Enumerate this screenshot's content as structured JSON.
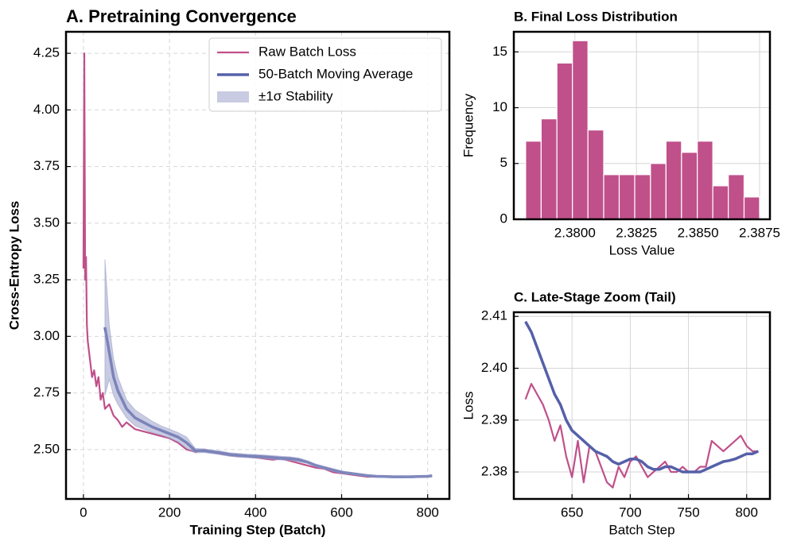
{
  "chart_data": [
    {
      "type": "line",
      "title": "A. Pretraining Convergence",
      "xlabel": "Training Step (Batch)",
      "ylabel": "Cross-Entropy Loss",
      "x": [
        0,
        2,
        4,
        6,
        8,
        10,
        15,
        20,
        25,
        30,
        35,
        40,
        45,
        50,
        60,
        70,
        80,
        90,
        100,
        120,
        140,
        160,
        180,
        200,
        220,
        240,
        260,
        280,
        300,
        320,
        340,
        360,
        380,
        400,
        420,
        440,
        460,
        480,
        500,
        520,
        540,
        560,
        580,
        600,
        620,
        640,
        660,
        680,
        700,
        720,
        740,
        760,
        780,
        800,
        810
      ],
      "series": [
        {
          "name": "Raw Batch Loss",
          "color": "#c0508a",
          "values": [
            3.3,
            4.25,
            3.25,
            3.35,
            3.05,
            2.98,
            2.9,
            2.82,
            2.85,
            2.78,
            2.82,
            2.72,
            2.75,
            2.68,
            2.7,
            2.65,
            2.63,
            2.6,
            2.62,
            2.59,
            2.58,
            2.57,
            2.56,
            2.55,
            2.53,
            2.5,
            2.49,
            2.5,
            2.49,
            2.48,
            2.475,
            2.47,
            2.47,
            2.465,
            2.46,
            2.455,
            2.46,
            2.45,
            2.44,
            2.43,
            2.42,
            2.415,
            2.4,
            2.395,
            2.39,
            2.385,
            2.38,
            2.38,
            2.382,
            2.38,
            2.378,
            2.38,
            2.382,
            2.383,
            2.384
          ]
        },
        {
          "name": "50-Batch Moving Average",
          "color": "#5560a8",
          "values": [
            null,
            null,
            null,
            null,
            null,
            null,
            null,
            null,
            null,
            null,
            null,
            null,
            null,
            3.04,
            2.93,
            2.82,
            2.76,
            2.72,
            2.68,
            2.64,
            2.62,
            2.6,
            2.585,
            2.57,
            2.555,
            2.53,
            2.495,
            2.495,
            2.49,
            2.485,
            2.478,
            2.475,
            2.472,
            2.47,
            2.468,
            2.465,
            2.462,
            2.46,
            2.455,
            2.445,
            2.43,
            2.42,
            2.41,
            2.4,
            2.395,
            2.39,
            2.385,
            2.382,
            2.381,
            2.38,
            2.38,
            2.38,
            2.381,
            2.382,
            2.384
          ]
        },
        {
          "name": "±1σ Stability",
          "color": "#9aa0c8",
          "upper": [
            null,
            null,
            null,
            null,
            null,
            null,
            null,
            null,
            null,
            null,
            null,
            null,
            null,
            3.34,
            3.05,
            2.9,
            2.82,
            2.77,
            2.72,
            2.675,
            2.65,
            2.625,
            2.605,
            2.59,
            2.575,
            2.555,
            2.505,
            2.503,
            2.498,
            2.493,
            2.486,
            2.483,
            2.48,
            2.478,
            2.476,
            2.473,
            2.47,
            2.468,
            2.463,
            2.451,
            2.436,
            2.426,
            2.416,
            2.406,
            2.399,
            2.394,
            2.389,
            2.386,
            2.385,
            2.384,
            2.384,
            2.384,
            2.385,
            2.386,
            2.388
          ],
          "lower": [
            null,
            null,
            null,
            null,
            null,
            null,
            null,
            null,
            null,
            null,
            null,
            null,
            null,
            2.74,
            2.81,
            2.74,
            2.7,
            2.67,
            2.64,
            2.605,
            2.59,
            2.575,
            2.565,
            2.55,
            2.535,
            2.505,
            2.485,
            2.487,
            2.482,
            2.477,
            2.47,
            2.467,
            2.464,
            2.462,
            2.46,
            2.457,
            2.454,
            2.452,
            2.447,
            2.439,
            2.424,
            2.414,
            2.404,
            2.394,
            2.391,
            2.386,
            2.381,
            2.378,
            2.377,
            2.376,
            2.376,
            2.376,
            2.377,
            2.378,
            2.38
          ]
        }
      ],
      "xlim": [
        -40.5,
        850.5
      ],
      "xticks": [
        0,
        200,
        400,
        600,
        800
      ],
      "ylim": [
        2.282,
        4.345
      ],
      "yticks": [
        {
          "value": 2.5,
          "label": "2.50"
        },
        2.75,
        {
          "value": 3.0,
          "label": "3.00"
        },
        3.25,
        {
          "value": 3.5,
          "label": "3.50"
        },
        3.75,
        {
          "value": 4.0,
          "label": "4.00"
        },
        4.25
      ],
      "grid": true,
      "grid_style": "dashed",
      "legend": "upper right"
    },
    {
      "type": "histogram",
      "title": "B. Final Loss Distribution",
      "xlabel": "Loss Value",
      "ylabel": "Frequency",
      "color": "#c0508a",
      "bins": [
        2.378,
        2.37863,
        2.37927,
        2.3799,
        2.38053,
        2.38117,
        2.3818,
        2.38243,
        2.38307,
        2.3837,
        2.38433,
        2.38497,
        2.3856,
        2.38623,
        2.38687,
        2.3875
      ],
      "counts": [
        7,
        9,
        14,
        16,
        8,
        4,
        4,
        4,
        5,
        7,
        6,
        7,
        3,
        4,
        2
      ],
      "xlim": [
        2.37752,
        2.38792
      ],
      "xticks": [
        {
          "value": 2.38,
          "label": "2.3800"
        },
        {
          "value": 2.3825,
          "label": "2.3825"
        },
        {
          "value": 2.385,
          "label": "2.3850"
        },
        {
          "value": 2.3875,
          "label": "2.3875"
        }
      ],
      "ylim": [
        0,
        16.8
      ],
      "yticks": [
        0,
        5,
        10,
        15
      ],
      "grid": true,
      "grid_style": "solid"
    },
    {
      "type": "line",
      "title": "C. Late-Stage Zoom (Tail)",
      "xlabel": "Batch Step",
      "ylabel": "Loss",
      "x": [
        610,
        615,
        620,
        625,
        630,
        635,
        640,
        645,
        650,
        655,
        660,
        665,
        670,
        675,
        680,
        685,
        690,
        695,
        700,
        705,
        710,
        715,
        720,
        725,
        730,
        735,
        740,
        745,
        750,
        755,
        760,
        765,
        770,
        775,
        780,
        785,
        790,
        795,
        800,
        805,
        810
      ],
      "series": [
        {
          "color": "#c0508a",
          "values": [
            2.394,
            2.397,
            2.395,
            2.393,
            2.39,
            2.386,
            2.389,
            2.383,
            2.379,
            2.386,
            2.378,
            2.385,
            2.384,
            2.381,
            2.378,
            2.377,
            2.381,
            2.379,
            2.382,
            2.383,
            2.381,
            2.379,
            2.38,
            2.381,
            2.382,
            2.38,
            2.38,
            2.381,
            2.38,
            2.38,
            2.381,
            2.381,
            2.386,
            2.385,
            2.384,
            2.385,
            2.386,
            2.387,
            2.385,
            2.384,
            2.384
          ]
        },
        {
          "color": "#5560a8",
          "values": [
            2.409,
            2.407,
            2.404,
            2.401,
            2.398,
            2.395,
            2.393,
            2.39,
            2.388,
            2.387,
            2.386,
            2.385,
            2.384,
            2.3835,
            2.383,
            2.382,
            2.3815,
            2.382,
            2.3825,
            2.3825,
            2.382,
            2.381,
            2.3805,
            2.3805,
            2.381,
            2.381,
            2.3805,
            2.38,
            2.38,
            2.38,
            2.38,
            2.3805,
            2.381,
            2.3815,
            2.382,
            2.3822,
            2.3825,
            2.383,
            2.3835,
            2.3835,
            2.384
          ]
        }
      ],
      "xlim": [
        600,
        820
      ],
      "xticks": [
        650,
        700,
        750,
        800
      ],
      "ylim": [
        2.3748,
        2.4108
      ],
      "yticks": [
        2.38,
        2.39,
        {
          "value": 2.4,
          "label": "2.40"
        },
        2.41
      ],
      "grid": true,
      "grid_style": "solid"
    }
  ]
}
